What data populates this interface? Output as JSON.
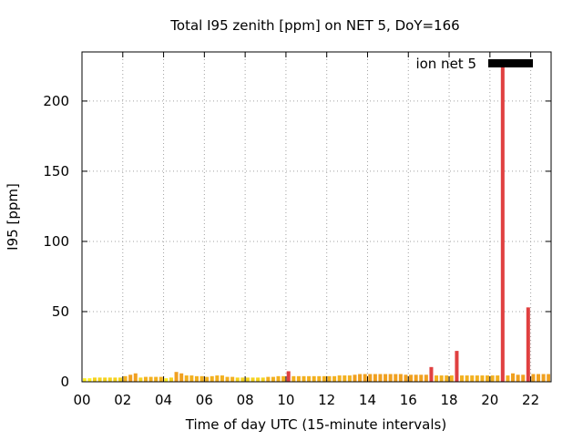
{
  "chart_data": {
    "type": "bar",
    "title": "Total I95 zenith [ppm] on NET 5, DoY=166",
    "xlabel": "Time of day UTC (15-minute intervals)",
    "ylabel": "I95 [ppm]",
    "xlim": [
      0,
      23
    ],
    "ylim": [
      0,
      235
    ],
    "xticks": [
      "00",
      "02",
      "04",
      "06",
      "08",
      "10",
      "12",
      "14",
      "16",
      "18",
      "20",
      "22"
    ],
    "xtick_values": [
      0,
      2,
      4,
      6,
      8,
      10,
      12,
      14,
      16,
      18,
      20,
      22
    ],
    "yticks": [
      "0",
      "50",
      "100",
      "150",
      "200"
    ],
    "ytick_values": [
      0,
      50,
      100,
      150,
      200
    ],
    "grid": true,
    "legend_position": "top-right",
    "series": [
      {
        "name": "ion net 5",
        "legend_color": "#000000",
        "interval_hours": 0.25,
        "values": [
          2.5,
          2.5,
          3,
          3,
          3,
          3,
          3,
          3,
          4,
          5,
          6,
          3,
          3.5,
          3.5,
          3.5,
          3.5,
          2.5,
          3,
          7,
          6,
          4.5,
          4.5,
          4,
          4,
          3.5,
          4,
          4.5,
          4.5,
          3.5,
          3.5,
          3,
          3,
          3,
          3,
          3,
          3,
          3.5,
          3.5,
          4,
          4,
          7.5,
          4,
          4,
          4,
          4,
          4,
          4,
          4,
          4,
          4,
          4.5,
          4.5,
          4.5,
          5,
          5.5,
          5.5,
          5.5,
          5.5,
          5.5,
          5.5,
          5.5,
          5.5,
          5.5,
          5,
          5,
          5,
          5,
          5,
          10.5,
          4.5,
          4.5,
          4.5,
          4.5,
          22,
          4.5,
          4.5,
          4.5,
          4.5,
          4.5,
          4.5,
          4.5,
          4.5,
          225,
          4.5,
          6,
          5,
          5,
          53,
          5.5,
          5.5,
          5.5,
          5.5
        ]
      }
    ]
  }
}
